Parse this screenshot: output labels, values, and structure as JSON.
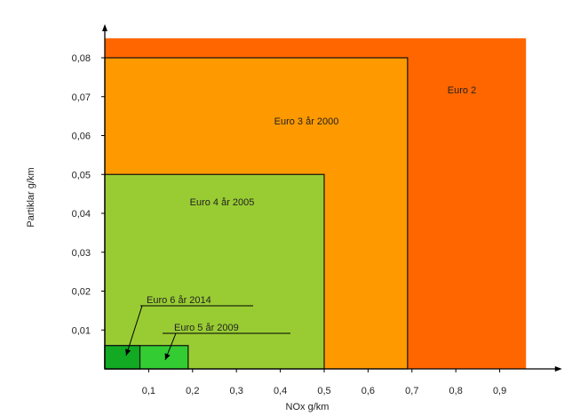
{
  "chart_data": {
    "type": "area",
    "title": "",
    "xlabel": "NOx g/km",
    "ylabel": "Partiklar g/km",
    "xlim": [
      0,
      1.03
    ],
    "ylim": [
      0,
      0.085
    ],
    "x_ticks": [
      "0,1",
      "0,2",
      "0,3",
      "0,4",
      "0,5",
      "0,6",
      "0,7",
      "0,8",
      "0,9"
    ],
    "y_ticks": [
      "0,01",
      "0,02",
      "0,03",
      "0,04",
      "0,05",
      "0,06",
      "0,07",
      "0,08"
    ],
    "regions": [
      {
        "label": "Euro 2",
        "nox_max": 0.96,
        "particles_max": 0.085,
        "color": "#ff6600",
        "outlined": false
      },
      {
        "label": "Euro 3 år 2000",
        "nox_max": 0.69,
        "particles_max": 0.08,
        "color": "#ff9900",
        "outlined": true
      },
      {
        "label": "Euro 4 år 2005",
        "nox_max": 0.5,
        "particles_max": 0.05,
        "color": "#99cc33",
        "outlined": true
      },
      {
        "label": "Euro 5 år 2009",
        "nox_max": 0.19,
        "particles_max": 0.006,
        "color": "#33cc33",
        "outlined": true
      },
      {
        "label": "Euro 6 år 2014",
        "nox_max": 0.08,
        "particles_max": 0.006,
        "color": "#11aa22",
        "outlined": true
      }
    ],
    "grid": false,
    "legend": "none"
  }
}
